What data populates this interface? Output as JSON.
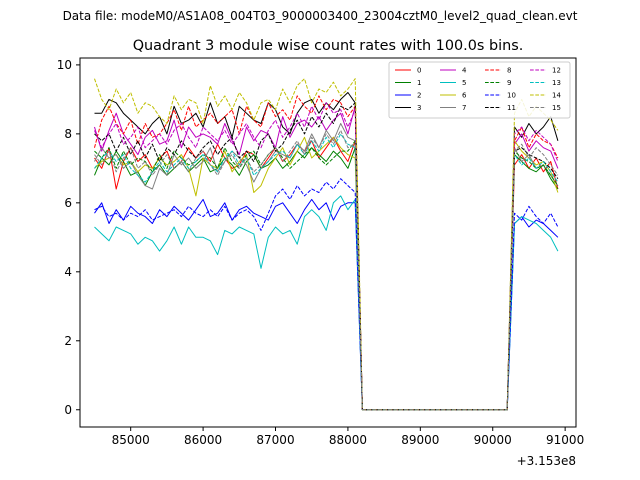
{
  "chart_data": {
    "type": "line",
    "suptitle": "Data file: modeM0/AS1A08_004T03_9000003400_23004cztM0_level2_quad_clean.evt",
    "title": "Quadrant 3 module wise count rates with 100.0s bins.",
    "xlabel": "",
    "ylabel": "",
    "x_offset_label": "+3.153e8",
    "x_ticks": [
      85000,
      86000,
      87000,
      88000,
      89000,
      90000,
      91000
    ],
    "x_tick_labels": [
      "85000",
      "86000",
      "87000",
      "88000",
      "89000",
      "90000",
      "91000"
    ],
    "y_ticks": [
      0,
      2,
      4,
      6,
      8,
      10
    ],
    "y_tick_labels": [
      "0",
      "2",
      "4",
      "6",
      "8",
      "10"
    ],
    "xlim": [
      84300,
      91150
    ],
    "ylim": [
      -0.5,
      10.2
    ],
    "legend_position": "top-right",
    "segments": [
      {
        "x_start": 84500,
        "step": 100,
        "count": 37
      },
      {
        "x_start": 90300,
        "step": 100,
        "count": 7
      }
    ],
    "gap": {
      "x_start": 88200,
      "x_end": 90200,
      "value": 0
    },
    "series": [
      {
        "name": "0",
        "color": "#ff0000",
        "dash": "solid",
        "values": [
          7.3,
          7.0,
          7.6,
          6.4,
          7.2,
          7.6,
          7.2,
          7.4,
          7.0,
          7.3,
          7.5,
          7.0,
          7.2,
          7.6,
          7.3,
          7.5,
          7.2,
          7.7,
          7.3,
          7.0,
          7.1,
          7.5,
          7.4,
          7.0,
          7.3,
          7.6,
          7.2,
          7.4,
          7.7,
          7.5,
          7.8,
          7.3,
          7.6,
          7.9,
          7.5,
          7.2,
          7.8,
          7.1,
          7.4,
          7.0,
          7.3,
          6.9,
          7.2,
          6.4
        ]
      },
      {
        "name": "1",
        "color": "#008000",
        "dash": "solid",
        "values": [
          6.8,
          7.3,
          7.1,
          7.5,
          7.2,
          6.8,
          6.9,
          6.5,
          6.9,
          7.1,
          6.8,
          7.0,
          7.2,
          6.9,
          7.1,
          7.3,
          6.9,
          7.0,
          7.3,
          7.1,
          6.8,
          7.2,
          7.4,
          7.0,
          7.1,
          7.3,
          7.0,
          7.2,
          7.5,
          7.3,
          7.6,
          7.4,
          7.2,
          7.5,
          7.3,
          7.0,
          7.6,
          7.4,
          7.2,
          7.0,
          6.9,
          7.1,
          6.7,
          6.4
        ]
      },
      {
        "name": "2",
        "color": "#0000ff",
        "dash": "solid",
        "values": [
          5.7,
          6.0,
          5.4,
          5.8,
          5.5,
          5.9,
          5.7,
          5.6,
          5.4,
          5.8,
          5.6,
          5.9,
          5.7,
          5.5,
          5.8,
          6.1,
          5.6,
          5.7,
          6.0,
          5.5,
          5.8,
          5.9,
          5.7,
          5.6,
          5.5,
          5.9,
          6.0,
          5.7,
          5.4,
          5.8,
          6.1,
          5.8,
          6.0,
          5.5,
          5.9,
          6.0,
          6.0,
          5.4,
          5.6,
          5.3,
          5.5,
          5.4,
          5.2,
          5.0
        ]
      },
      {
        "name": "3",
        "color": "#000000",
        "dash": "solid",
        "values": [
          8.6,
          8.6,
          9.0,
          8.9,
          8.6,
          8.4,
          8.2,
          8.0,
          8.3,
          8.5,
          8.0,
          8.8,
          8.3,
          8.4,
          8.6,
          8.2,
          8.9,
          8.3,
          8.5,
          7.9,
          8.8,
          8.6,
          8.4,
          8.3,
          8.9,
          8.7,
          8.2,
          8.0,
          8.6,
          8.9,
          9.0,
          8.6,
          8.9,
          8.7,
          9.0,
          9.2,
          8.9,
          8.2,
          7.9,
          8.3,
          8.0,
          8.2,
          8.5,
          7.8
        ]
      },
      {
        "name": "4",
        "color": "#bf00bf",
        "dash": "solid",
        "values": [
          8.2,
          7.5,
          8.1,
          8.6,
          8.0,
          7.7,
          7.4,
          7.9,
          8.1,
          7.7,
          7.8,
          8.4,
          7.6,
          8.2,
          7.9,
          8.0,
          7.9,
          7.7,
          8.3,
          7.8,
          7.4,
          8.2,
          7.8,
          8.1,
          8.0,
          7.6,
          8.5,
          7.9,
          8.3,
          8.4,
          8.2,
          8.5,
          8.1,
          8.4,
          8.6,
          8.0,
          8.8,
          7.7,
          8.0,
          7.5,
          7.8,
          7.6,
          7.5,
          7.0
        ]
      },
      {
        "name": "5",
        "color": "#00bfbf",
        "dash": "solid",
        "values": [
          5.3,
          5.1,
          4.9,
          5.3,
          5.2,
          5.1,
          4.8,
          5.0,
          4.9,
          4.6,
          4.9,
          5.3,
          4.8,
          5.3,
          5.0,
          5.0,
          4.9,
          4.5,
          5.2,
          5.1,
          5.3,
          5.2,
          5.1,
          4.1,
          5.0,
          5.3,
          5.1,
          5.2,
          4.8,
          5.6,
          5.8,
          5.6,
          5.2,
          6.0,
          6.2,
          5.8,
          6.1,
          5.4,
          5.6,
          5.5,
          5.4,
          5.2,
          5.0,
          4.6
        ]
      },
      {
        "name": "6",
        "color": "#bfbf00",
        "dash": "solid",
        "values": [
          7.0,
          7.2,
          7.3,
          7.4,
          7.1,
          7.2,
          6.9,
          7.1,
          7.0,
          7.3,
          7.1,
          7.2,
          7.4,
          7.0,
          6.2,
          7.3,
          7.1,
          7.0,
          7.5,
          6.9,
          7.2,
          7.4,
          6.3,
          6.5,
          7.0,
          7.3,
          7.6,
          7.1,
          7.5,
          7.9,
          7.3,
          7.5,
          7.7,
          7.9,
          7.6,
          7.4,
          7.3,
          7.8,
          7.5,
          7.3,
          7.1,
          7.2,
          6.9,
          6.3
        ]
      },
      {
        "name": "7",
        "color": "#808080",
        "dash": "solid",
        "values": [
          7.2,
          7.6,
          7.3,
          7.4,
          7.0,
          7.2,
          6.8,
          6.5,
          6.4,
          7.0,
          6.8,
          7.4,
          7.1,
          7.3,
          7.0,
          7.2,
          7.6,
          6.9,
          7.2,
          7.5,
          7.3,
          7.1,
          6.6,
          7.0,
          7.2,
          7.5,
          7.4,
          7.3,
          7.7,
          7.5,
          8.0,
          7.6,
          8.1,
          7.8,
          8.3,
          7.9,
          7.8,
          7.6,
          7.2,
          7.4,
          7.0,
          7.1,
          6.8,
          6.5
        ]
      },
      {
        "name": "8",
        "color": "#ff0000",
        "dash": "dashed",
        "values": [
          7.6,
          8.4,
          8.8,
          8.3,
          8.0,
          8.4,
          7.7,
          8.3,
          7.9,
          8.0,
          8.3,
          8.7,
          8.1,
          8.8,
          8.2,
          8.4,
          8.6,
          8.3,
          8.5,
          8.7,
          8.0,
          8.8,
          8.4,
          8.2,
          8.9,
          8.5,
          8.7,
          8.4,
          9.1,
          8.8,
          8.6,
          9.1,
          8.7,
          9.0,
          8.9,
          8.5,
          8.8,
          7.8,
          8.2,
          7.6,
          8.0,
          7.8,
          7.7,
          7.3
        ]
      },
      {
        "name": "9",
        "color": "#008000",
        "dash": "dashed",
        "values": [
          7.5,
          7.3,
          7.6,
          7.0,
          7.5,
          7.1,
          7.3,
          7.2,
          6.9,
          7.4,
          7.0,
          7.5,
          7.3,
          7.1,
          7.2,
          7.4,
          7.3,
          7.0,
          7.6,
          7.2,
          7.0,
          7.4,
          7.5,
          7.1,
          7.4,
          7.6,
          7.3,
          7.0,
          7.2,
          7.4,
          7.6,
          7.3,
          7.1,
          7.3,
          7.5,
          7.5,
          7.8,
          7.5,
          7.3,
          7.2,
          7.0,
          7.1,
          6.8,
          6.5
        ]
      },
      {
        "name": "10",
        "color": "#0000ff",
        "dash": "dashed",
        "values": [
          5.8,
          5.9,
          5.6,
          5.7,
          5.5,
          5.7,
          5.6,
          5.8,
          5.5,
          5.6,
          5.7,
          5.8,
          5.6,
          5.9,
          5.7,
          5.6,
          5.8,
          5.6,
          5.9,
          5.5,
          5.7,
          5.8,
          5.6,
          5.2,
          5.7,
          6.2,
          6.4,
          6.1,
          6.5,
          6.2,
          6.4,
          6.3,
          6.6,
          6.4,
          6.7,
          6.5,
          6.3,
          5.7,
          5.5,
          5.9,
          5.6,
          5.4,
          5.7,
          5.3
        ]
      },
      {
        "name": "11",
        "color": "#000000",
        "dash": "dashed",
        "values": [
          8.0,
          7.8,
          8.0,
          7.5,
          7.9,
          7.4,
          7.8,
          7.3,
          7.7,
          7.2,
          7.6,
          7.4,
          7.8,
          7.5,
          7.3,
          7.6,
          7.8,
          7.4,
          7.7,
          7.9,
          7.3,
          7.5,
          7.2,
          7.8,
          8.0,
          7.5,
          7.7,
          8.1,
          8.4,
          8.0,
          8.5,
          8.2,
          8.6,
          8.3,
          8.8,
          8.7,
          8.9,
          7.5,
          7.6,
          7.4,
          7.3,
          7.2,
          7.0,
          6.7
        ]
      },
      {
        "name": "12",
        "color": "#bf00bf",
        "dash": "dashed",
        "values": [
          8.1,
          7.6,
          8.0,
          8.3,
          7.7,
          7.9,
          8.2,
          7.6,
          7.8,
          8.0,
          7.7,
          8.1,
          8.3,
          7.9,
          7.6,
          8.2,
          8.0,
          7.8,
          8.1,
          7.7,
          8.0,
          8.3,
          7.9,
          7.6,
          8.1,
          8.4,
          7.9,
          8.2,
          8.6,
          8.2,
          8.8,
          8.4,
          8.9,
          8.6,
          8.7,
          8.2,
          8.7,
          8.0,
          8.2,
          7.8,
          8.1,
          7.9,
          7.7,
          7.2
        ]
      },
      {
        "name": "13",
        "color": "#00bfbf",
        "dash": "dashed",
        "values": [
          7.0,
          7.3,
          7.5,
          7.2,
          7.4,
          7.0,
          6.8,
          6.6,
          6.9,
          7.2,
          6.9,
          7.1,
          7.3,
          7.0,
          7.2,
          7.4,
          7.1,
          6.9,
          7.3,
          7.5,
          7.1,
          7.3,
          6.8,
          7.0,
          7.2,
          7.4,
          7.5,
          7.3,
          7.7,
          7.4,
          7.8,
          7.5,
          7.9,
          7.6,
          8.0,
          7.7,
          7.6,
          7.4,
          7.1,
          7.3,
          7.0,
          7.2,
          6.9,
          6.6
        ]
      },
      {
        "name": "14",
        "color": "#bfbf00",
        "dash": "dashed",
        "values": [
          9.6,
          9.0,
          8.7,
          9.3,
          8.9,
          9.2,
          8.6,
          8.9,
          8.8,
          8.5,
          8.3,
          9.1,
          8.7,
          9.0,
          8.9,
          8.3,
          9.4,
          8.8,
          9.1,
          8.7,
          9.2,
          8.9,
          8.4,
          8.9,
          9.0,
          8.7,
          9.3,
          8.9,
          9.4,
          9.6,
          8.9,
          9.3,
          9.2,
          9.5,
          9.1,
          9.3,
          9.6,
          8.6,
          9.0,
          8.5,
          8.8,
          8.6,
          8.4,
          8.1
        ]
      },
      {
        "name": "15",
        "color": "#808080",
        "dash": "dashed",
        "values": [
          7.4,
          7.1,
          7.5,
          6.9,
          7.3,
          7.6,
          7.0,
          7.2,
          6.8,
          7.1,
          7.4,
          7.0,
          7.2,
          6.9,
          7.3,
          7.5,
          7.1,
          6.8,
          7.2,
          7.4,
          7.0,
          7.3,
          6.9,
          7.1,
          7.4,
          7.6,
          7.2,
          7.5,
          7.8,
          7.4,
          7.9,
          7.6,
          8.0,
          7.7,
          8.1,
          7.6,
          7.7,
          7.5,
          7.7,
          7.3,
          7.6,
          7.4,
          7.1,
          6.8
        ]
      }
    ]
  }
}
